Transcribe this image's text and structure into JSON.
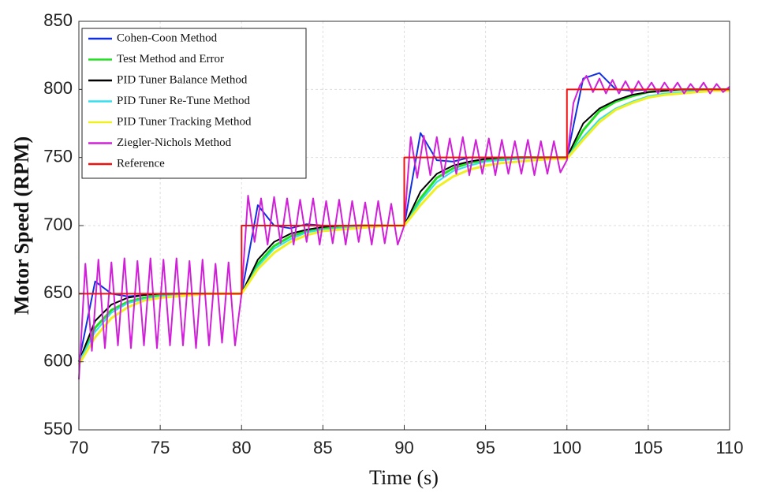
{
  "chart_data": {
    "type": "line",
    "xlabel": "Time (s)",
    "ylabel": "Motor Speed (RPM)",
    "xlim": [
      70,
      110
    ],
    "xticks": [
      70,
      75,
      80,
      85,
      90,
      95,
      100,
      105,
      110
    ],
    "ylim": [
      550,
      850
    ],
    "yticks": [
      550,
      600,
      650,
      700,
      750,
      800,
      850
    ],
    "grid": true,
    "legend": "upper left",
    "x": [
      70,
      71,
      72,
      73,
      74,
      75,
      76,
      77,
      78,
      79,
      80,
      81,
      82,
      83,
      84,
      85,
      86,
      87,
      88,
      89,
      90,
      91,
      92,
      93,
      94,
      95,
      96,
      97,
      98,
      99,
      100,
      101,
      102,
      103,
      104,
      105,
      106,
      107,
      108,
      109,
      110
    ],
    "series": [
      {
        "name": "Cohen-Coon Method",
        "color": "#1030e0",
        "values": [
          600,
          659,
          650,
          648,
          649,
          650,
          650,
          650,
          650,
          650,
          650,
          715,
          700,
          698,
          701,
          700,
          700,
          700,
          700,
          700,
          700,
          768,
          748,
          747,
          750,
          750,
          750,
          750,
          750,
          750,
          750,
          808,
          812,
          800,
          799,
          800,
          800,
          800,
          800,
          800,
          800
        ]
      },
      {
        "name": "Test Method and Error",
        "color": "#22e022",
        "values": [
          600,
          625,
          638,
          644,
          647,
          649,
          650,
          650,
          650,
          650,
          650,
          672,
          685,
          692,
          696,
          698,
          699,
          700,
          700,
          700,
          700,
          720,
          735,
          742,
          746,
          748,
          749,
          750,
          750,
          750,
          750,
          770,
          784,
          791,
          795,
          798,
          799,
          800,
          800,
          800,
          800
        ]
      },
      {
        "name": "PID Tuner Balance Method",
        "color": "#000000",
        "values": [
          600,
          630,
          642,
          647,
          649,
          650,
          650,
          650,
          650,
          650,
          650,
          675,
          688,
          694,
          697,
          699,
          700,
          700,
          700,
          700,
          700,
          725,
          738,
          744,
          747,
          749,
          750,
          750,
          750,
          750,
          750,
          775,
          786,
          792,
          796,
          798,
          799,
          800,
          800,
          800,
          800
        ]
      },
      {
        "name": "PID Tuner Re-Tune Method",
        "color": "#30e0f0",
        "values": [
          600,
          622,
          636,
          643,
          646,
          648,
          649,
          650,
          650,
          650,
          650,
          670,
          683,
          690,
          695,
          697,
          698,
          699,
          700,
          700,
          700,
          718,
          732,
          740,
          744,
          747,
          748,
          749,
          750,
          750,
          750,
          765,
          778,
          786,
          791,
          795,
          797,
          798,
          799,
          800,
          800
        ]
      },
      {
        "name": "PID Tuner Tracking Method",
        "color": "#f0f020",
        "values": [
          598,
          618,
          632,
          640,
          645,
          647,
          648,
          649,
          650,
          650,
          650,
          668,
          680,
          688,
          693,
          696,
          697,
          698,
          699,
          700,
          700,
          715,
          728,
          736,
          741,
          744,
          746,
          747,
          748,
          749,
          749,
          763,
          776,
          785,
          790,
          794,
          796,
          797,
          798,
          799,
          799
        ]
      },
      {
        "name": "Ziegler-Nichols Method",
        "color": "#d020d8",
        "x": [
          70,
          70.4,
          70.8,
          71.2,
          71.6,
          72,
          72.4,
          72.8,
          73.2,
          73.6,
          74,
          74.4,
          74.8,
          75.2,
          75.6,
          76,
          76.4,
          76.8,
          77.2,
          77.6,
          78,
          78.4,
          78.8,
          79.2,
          79.6,
          80,
          80.4,
          80.8,
          81.2,
          81.6,
          82,
          82.4,
          82.8,
          83.2,
          83.6,
          84,
          84.4,
          84.8,
          85.2,
          85.6,
          86,
          86.4,
          86.8,
          87.2,
          87.6,
          88,
          88.4,
          88.8,
          89.2,
          89.6,
          90,
          90.4,
          90.8,
          91.2,
          91.6,
          92,
          92.4,
          92.8,
          93.2,
          93.6,
          94,
          94.4,
          94.8,
          95.2,
          95.6,
          96,
          96.4,
          96.8,
          97.2,
          97.6,
          98,
          98.4,
          98.8,
          99.2,
          99.6,
          100,
          100.4,
          100.8,
          101.2,
          101.6,
          102,
          102.4,
          102.8,
          103.2,
          103.6,
          104,
          104.4,
          104.8,
          105.2,
          105.6,
          106,
          106.4,
          106.8,
          107.2,
          107.6,
          108,
          108.4,
          108.8,
          109.2,
          109.6,
          110
        ],
        "values": [
          587,
          672,
          608,
          675,
          610,
          673,
          612,
          676,
          610,
          674,
          612,
          676,
          610,
          675,
          612,
          676,
          612,
          674,
          610,
          675,
          612,
          672,
          614,
          673,
          612,
          650,
          722,
          688,
          720,
          686,
          721,
          687,
          720,
          686,
          719,
          688,
          720,
          686,
          718,
          687,
          719,
          686,
          718,
          688,
          717,
          686,
          718,
          687,
          716,
          686,
          700,
          765,
          735,
          766,
          737,
          765,
          736,
          764,
          738,
          765,
          737,
          763,
          738,
          764,
          737,
          763,
          738,
          762,
          738,
          763,
          737,
          762,
          738,
          762,
          739,
          748,
          790,
          803,
          810,
          798,
          808,
          797,
          807,
          797,
          806,
          797,
          806,
          798,
          805,
          797,
          805,
          798,
          805,
          797,
          804,
          798,
          805,
          797,
          804,
          798,
          802
        ]
      },
      {
        "name": "Reference",
        "color": "#f01010",
        "x": [
          70,
          80,
          80,
          90,
          90,
          100,
          100,
          110
        ],
        "values": [
          650,
          650,
          700,
          700,
          750,
          750,
          800,
          800
        ]
      }
    ]
  }
}
